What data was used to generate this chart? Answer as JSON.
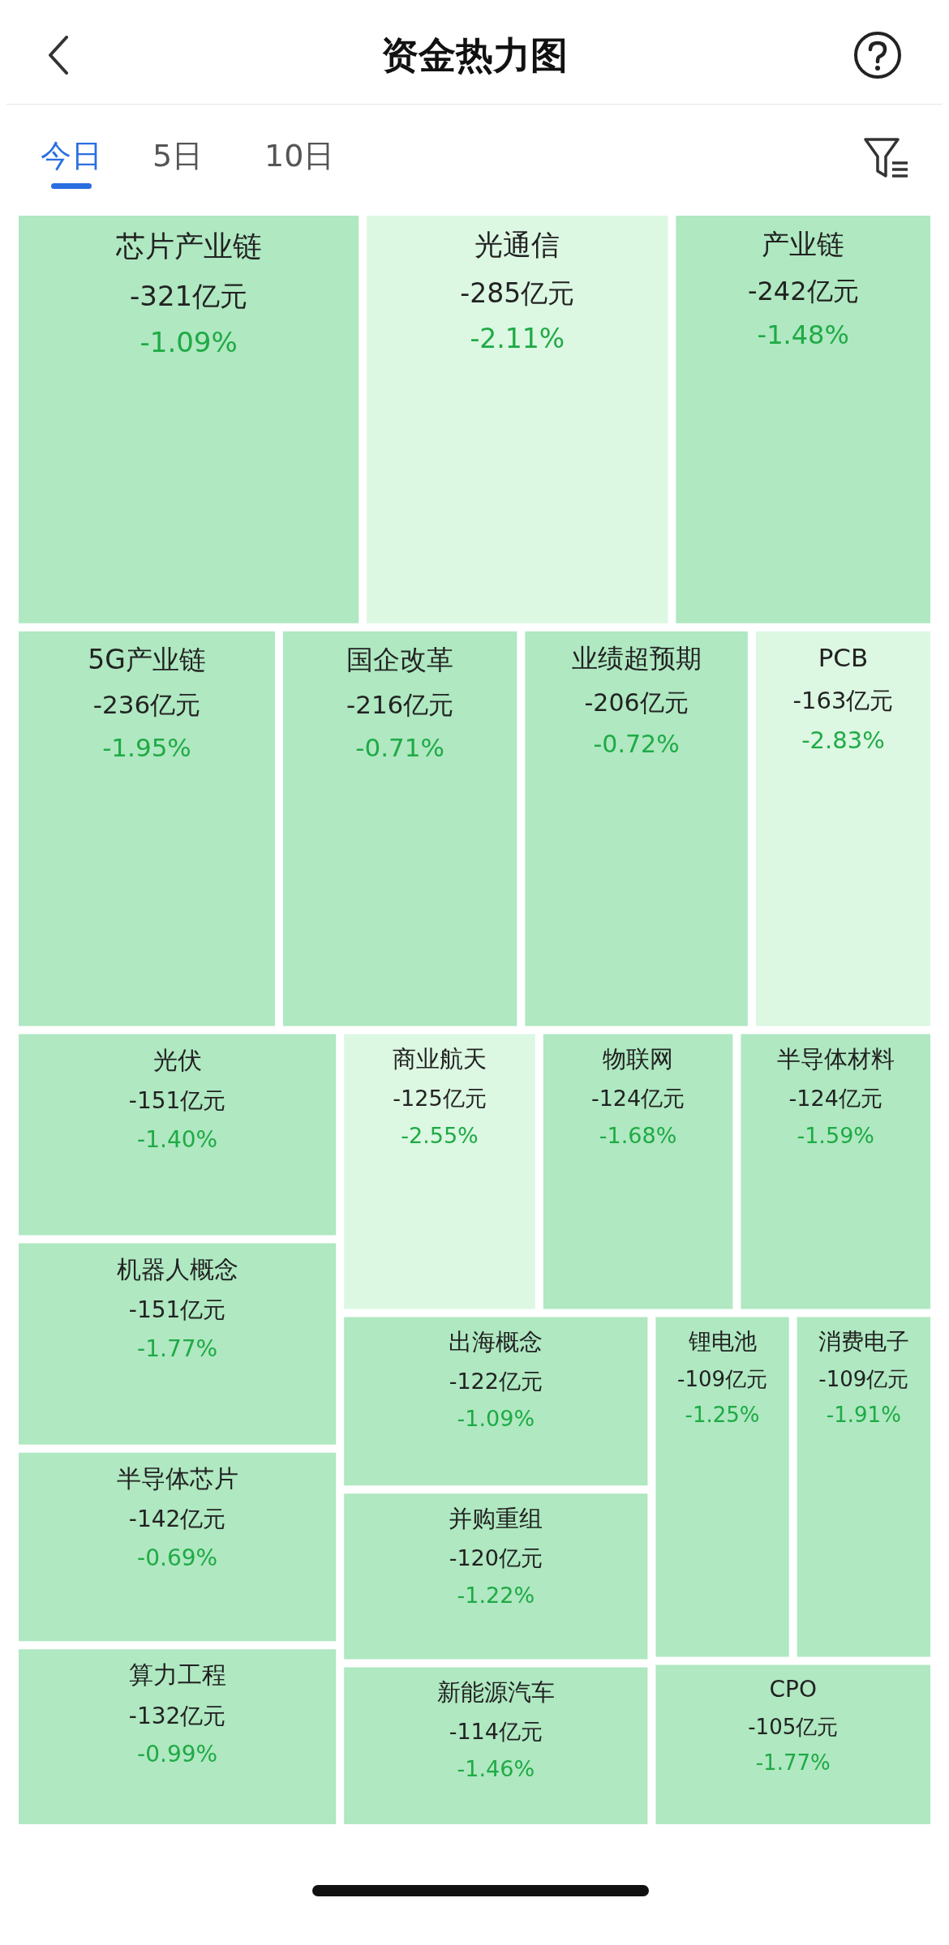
{
  "chart_data": {
    "type": "other",
    "title": "资金热力图",
    "annotations": [
      "今日",
      "5日",
      "10日"
    ],
    "categories": [
      "芯片产业链",
      "光通信",
      "产业链",
      "5G产业链",
      "国企改革",
      "业绩超预期",
      "PCB",
      "机器人概念",
      "商业航天",
      "半导体材料",
      "物联网",
      "光伏",
      "出海概念",
      "消费电子",
      "锂电池",
      "半导体芯片",
      "并购重组",
      "算力工程",
      "新能源汽车",
      "CPO"
    ],
    "series": [
      {
        "values": [
          -321,
          -285,
          -242,
          -236,
          -216,
          -206,
          -163,
          -151,
          -125,
          -124,
          -124,
          -151,
          -122,
          -109,
          -109,
          -142,
          -120,
          -132,
          -114,
          -105
        ],
        "value_labels": [
          "-321亿元",
          "-285亿元",
          "-242亿元",
          "-236亿元",
          "-216亿元",
          "-206亿元",
          "-163亿元",
          "-151亿元",
          "-125亿元",
          "-124亿元",
          "-124亿元",
          "-151亿元",
          "-122亿元",
          "-109亿元",
          "-109亿元",
          "-142亿元",
          "-120亿元",
          "-132亿元",
          "-114亿元",
          "-105亿元"
        ],
        "colors": [
          "#afe8c1",
          "#dcf7e2",
          "#afe8c1",
          "#afe8c1",
          "#afe8c1",
          "#afe8c1",
          "#dcf7e2",
          "#afe8c1",
          "#dcf7e2",
          "#afe8c1",
          "#afe8c1",
          "#afe8c1",
          "#afe8c1",
          "#afe8c1",
          "#afe8c1",
          "#afe8c1",
          "#afe8c1",
          "#afe8c1",
          "#afe8c1",
          "#afe8c1"
        ]
      },
      {
        "values": [
          -1.09,
          -2.11,
          -1.48,
          -1.95,
          -0.71,
          -0.72,
          -2.83,
          -1.77,
          -2.55,
          -1.59,
          -1.68,
          -1.4,
          -1.09,
          -1.91,
          -1.25,
          -0.69,
          -1.22,
          -0.99,
          -1.46,
          -1.77
        ],
        "value_labels": [
          "-1.09%",
          "-2.11%",
          "-1.48%",
          "-1.95%",
          "-0.71%",
          "-0.72%",
          "-2.83%",
          "-1.77%",
          "-2.55%",
          "-1.59%",
          "-1.68%",
          "-1.40%",
          "-1.09%",
          "-1.91%",
          "-1.25%",
          "-0.69%",
          "-1.22%",
          "-0.99%",
          "-1.46%",
          "-1.77%"
        ],
        "color": "#1faa45"
      }
    ]
  }
}
